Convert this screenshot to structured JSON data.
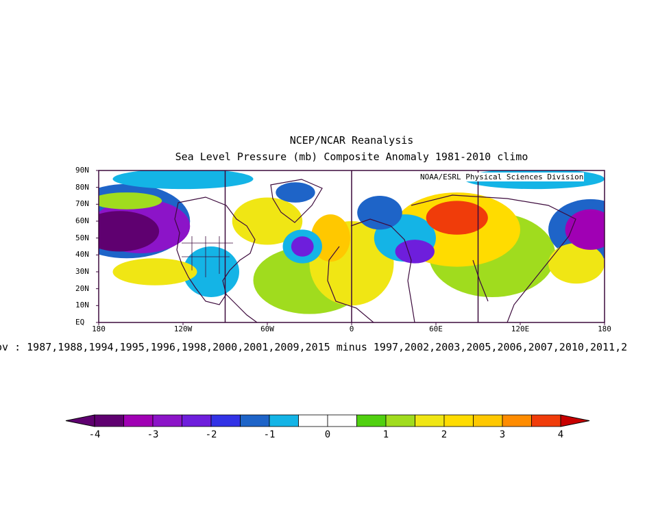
{
  "header": {
    "title": "NCEP/NCAR Reanalysis",
    "subtitle": "Sea Level Pressure (mb) Composite Anomaly 1981-2010 climo"
  },
  "map": {
    "credit": "NOAA/ESRL Physical Sciences Division",
    "lat_ticks": [
      "90N",
      "80N",
      "70N",
      "60N",
      "50N",
      "40N",
      "30N",
      "20N",
      "10N",
      "EQ"
    ],
    "lon_ticks": [
      "180",
      "120W",
      "60W",
      "0",
      "60E",
      "120E",
      "180"
    ],
    "caption": "ov : 1987,1988,1994,1995,1996,1998,2000,2001,2009,2015 minus 1997,2002,2003,2005,2006,2007,2010,2011,2",
    "extent": {
      "lon": [
        -180,
        180
      ],
      "lat": [
        0,
        90
      ]
    }
  },
  "colorbar": {
    "labels": [
      "-4",
      "-3",
      "-2",
      "-1",
      "0",
      "1",
      "2",
      "3",
      "4"
    ],
    "colors": [
      "#5f0070",
      "#a000b4",
      "#8c14c8",
      "#6e1edc",
      "#3232e6",
      "#1e64c8",
      "#14b4e6",
      "#ffffff",
      "#ffffff",
      "#50d010",
      "#a0dc1e",
      "#f0e614",
      "#ffdc00",
      "#ffc800",
      "#ff8c00",
      "#f03c0a"
    ],
    "min_arrow_color": "#5f0070",
    "max_arrow_color": "#c80000"
  },
  "chart_data": {
    "type": "heatmap",
    "title": "NCEP/NCAR Reanalysis",
    "subtitle": "Sea Level Pressure (mb) Composite Anomaly 1981-2010 climo",
    "variable": "Sea Level Pressure (mb) anomaly",
    "levels": [
      -4,
      -3.5,
      -3,
      -2.5,
      -2,
      -1.5,
      -1,
      -0.5,
      0,
      0.5,
      1,
      1.5,
      2,
      2.5,
      3,
      3.5,
      4
    ],
    "xrange": [
      -180,
      180
    ],
    "yrange": [
      0,
      90
    ],
    "blobs": [
      {
        "lon": -165,
        "lat": 54,
        "rx": 28,
        "ry": 12,
        "value": -4
      },
      {
        "lon": -150,
        "lat": 57,
        "rx": 35,
        "ry": 16,
        "value": -3
      },
      {
        "lon": -160,
        "lat": 60,
        "rx": 45,
        "ry": 22,
        "value": -1.5
      },
      {
        "lon": -35,
        "lat": 45,
        "rx": 8,
        "ry": 6,
        "value": -2.5
      },
      {
        "lon": -35,
        "lat": 45,
        "rx": 14,
        "ry": 10,
        "value": -1
      },
      {
        "lon": -40,
        "lat": 77,
        "rx": 14,
        "ry": 6,
        "value": -1.5
      },
      {
        "lon": 20,
        "lat": 65,
        "rx": 16,
        "ry": 10,
        "value": -1.5
      },
      {
        "lon": 45,
        "lat": 42,
        "rx": 14,
        "ry": 7,
        "value": -2.5
      },
      {
        "lon": 38,
        "lat": 50,
        "rx": 22,
        "ry": 14,
        "value": -1
      },
      {
        "lon": 170,
        "lat": 55,
        "rx": 18,
        "ry": 12,
        "value": -3.5
      },
      {
        "lon": 170,
        "lat": 55,
        "rx": 30,
        "ry": 18,
        "value": -1.5
      },
      {
        "lon": -100,
        "lat": 30,
        "rx": 20,
        "ry": 15,
        "value": -1
      },
      {
        "lon": -120,
        "lat": 85,
        "rx": 50,
        "ry": 6,
        "value": -1
      },
      {
        "lon": 130,
        "lat": 85,
        "rx": 50,
        "ry": 6,
        "value": -1
      },
      {
        "lon": 75,
        "lat": 62,
        "rx": 22,
        "ry": 10,
        "value": 3.5
      },
      {
        "lon": 75,
        "lat": 55,
        "rx": 45,
        "ry": 22,
        "value": 2
      },
      {
        "lon": 100,
        "lat": 40,
        "rx": 45,
        "ry": 25,
        "value": 1
      },
      {
        "lon": -15,
        "lat": 50,
        "rx": 14,
        "ry": 14,
        "value": 2.5
      },
      {
        "lon": 0,
        "lat": 35,
        "rx": 30,
        "ry": 25,
        "value": 1.5
      },
      {
        "lon": -30,
        "lat": 25,
        "rx": 40,
        "ry": 20,
        "value": 1
      },
      {
        "lon": -60,
        "lat": 60,
        "rx": 25,
        "ry": 14,
        "value": 1.5
      },
      {
        "lon": -140,
        "lat": 30,
        "rx": 30,
        "ry": 8,
        "value": 1.5
      },
      {
        "lon": 160,
        "lat": 35,
        "rx": 20,
        "ry": 12,
        "value": 1.5
      },
      {
        "lon": -160,
        "lat": 72,
        "rx": 25,
        "ry": 5,
        "value": 1
      }
    ]
  }
}
